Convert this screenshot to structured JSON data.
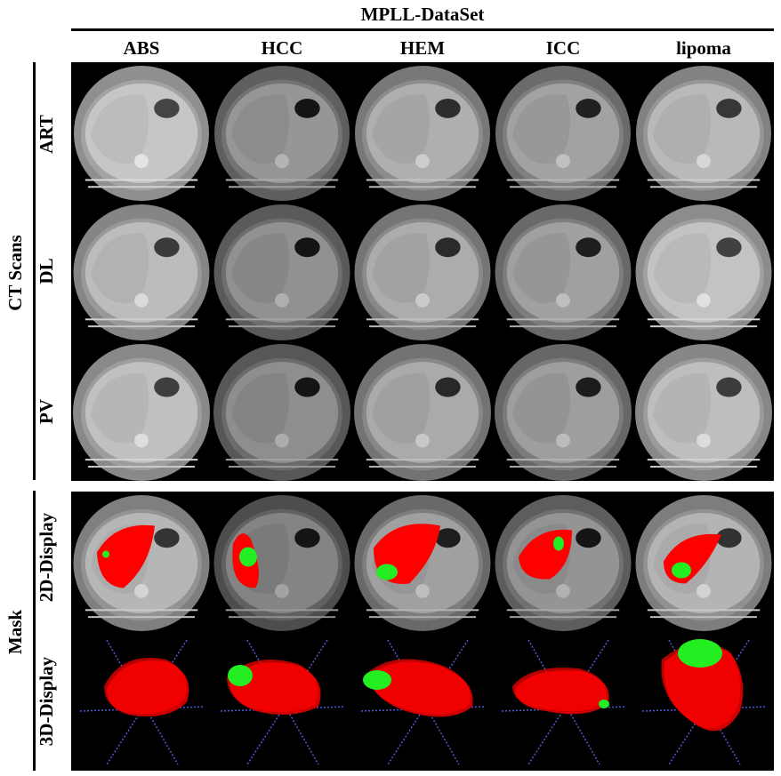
{
  "title": "MPLL-DataSet",
  "columns": [
    "ABS",
    "HCC",
    "HEM",
    "ICC",
    "lipoma"
  ],
  "groups": {
    "ct": {
      "label": "CT Scans",
      "rows": [
        "ART",
        "DL",
        "PV"
      ]
    },
    "mask": {
      "label": "Mask",
      "rows": [
        "2D-Display",
        "3D-Display"
      ]
    }
  },
  "colors": {
    "background": "#000000",
    "liver": "#ff0000",
    "tumor": "#22ee22",
    "axis_lines": "#4f5bd5"
  }
}
